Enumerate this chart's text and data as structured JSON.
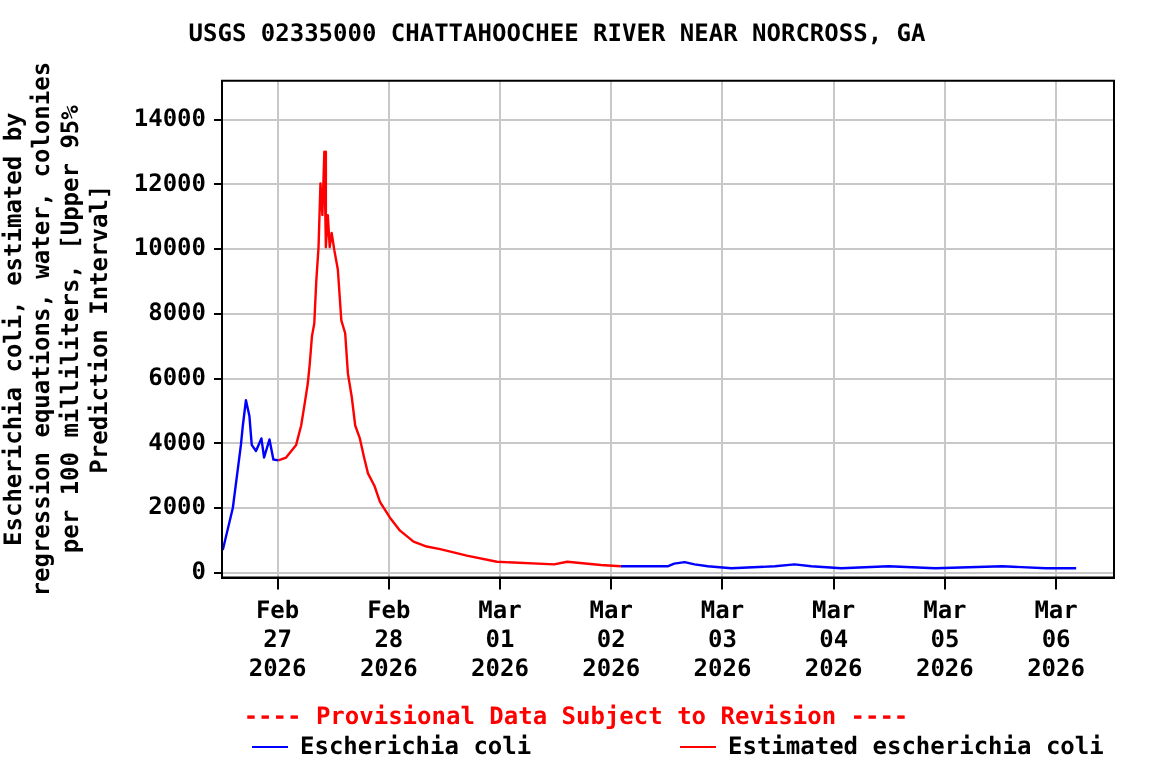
{
  "chart_data": {
    "type": "line",
    "title": "USGS 02335000 CHATTAHOOCHEE RIVER NEAR NORCROSS, GA",
    "ylabel": "Escherichia coli, estimated by regression equations, water, colonies per 100 milliliters, [Upper 95% Prediction Interval]",
    "annotations": [
      "---- Provisional Data Subject to Revision ----"
    ],
    "xlim": [
      "2026-02-26T12:00",
      "2026-03-06T12:30"
    ],
    "xticks": [
      {
        "value": "2026-02-27",
        "label": "Feb 27 2026"
      },
      {
        "value": "2026-02-28",
        "label": "Feb 28 2026"
      },
      {
        "value": "2026-03-01",
        "label": "Mar 01 2026"
      },
      {
        "value": "2026-03-02",
        "label": "Mar 02 2026"
      },
      {
        "value": "2026-03-03",
        "label": "Mar 03 2026"
      },
      {
        "value": "2026-03-04",
        "label": "Mar 04 2026"
      },
      {
        "value": "2026-03-05",
        "label": "Mar 05 2026"
      },
      {
        "value": "2026-03-06",
        "label": "Mar 06 2026"
      }
    ],
    "ylim": [
      -150,
      15200
    ],
    "yticks": [
      0,
      2000,
      4000,
      6000,
      8000,
      10000,
      12000,
      14000
    ],
    "grid": true,
    "legend": "bottom",
    "marker": "none",
    "line_style": "solid",
    "series": [
      {
        "name": "Escherichia coli",
        "color": "#0000ff",
        "x": [
          "2026-02-26T12:10",
          "2026-02-26T14:20",
          "2026-02-26T16:05",
          "2026-02-26T16:30",
          "2026-02-26T17:10",
          "2026-02-26T17:55",
          "2026-02-26T18:25",
          "2026-02-26T19:20",
          "2026-02-26T20:30",
          "2026-02-26T21:05",
          "2026-02-26T22:15",
          "2026-02-26T23:05",
          "2026-02-27T00:10",
          "2026-03-01T12:00",
          "2026-03-02T02:05",
          "2026-03-02T12:10",
          "2026-03-02T13:35",
          "2026-03-02T15:50",
          "2026-03-02T18:00",
          "2026-03-02T20:50",
          "2026-03-03T01:55",
          "2026-03-03T11:20",
          "2026-03-03T15:35",
          "2026-03-03T19:10",
          "2026-03-04T01:40",
          "2026-03-04T11:50",
          "2026-03-04T21:55",
          "2026-03-05T12:25",
          "2026-03-05T21:50",
          "2026-03-06T04:20"
        ],
        "values": [
          700,
          2000,
          3950,
          4550,
          5330,
          4840,
          3950,
          3760,
          4150,
          3560,
          4120,
          3500,
          3470,
          null,
          200,
          200,
          280,
          330,
          260,
          200,
          140,
          200,
          260,
          200,
          140,
          200,
          140,
          200,
          140,
          140
        ]
      },
      {
        "name": "Estimated escherichia coli",
        "color": "#ff0000",
        "x": [
          "2026-02-27T00:10",
          "2026-02-27T01:50",
          "2026-02-27T04:00",
          "2026-02-27T05:05",
          "2026-02-27T05:45",
          "2026-02-27T06:30",
          "2026-02-27T06:55",
          "2026-02-27T07:25",
          "2026-02-27T07:55",
          "2026-02-27T08:20",
          "2026-02-27T08:50",
          "2026-02-27T09:15",
          "2026-02-27T09:40",
          "2026-02-27T10:05",
          "2026-02-27T10:25",
          "2026-02-27T10:50",
          "2026-02-27T11:15",
          "2026-02-27T11:40",
          "2026-02-27T12:15",
          "2026-02-27T13:00",
          "2026-02-27T13:45",
          "2026-02-27T14:35",
          "2026-02-27T15:10",
          "2026-02-27T16:00",
          "2026-02-27T16:45",
          "2026-02-27T17:45",
          "2026-02-27T18:40",
          "2026-02-27T19:30",
          "2026-02-27T20:55",
          "2026-02-27T22:05",
          "2026-02-28T00:15",
          "2026-02-28T02:25",
          "2026-02-28T05:20",
          "2026-02-28T08:10",
          "2026-02-28T11:05",
          "2026-02-28T16:50",
          "2026-02-28T23:20",
          "2026-03-01T11:40",
          "2026-03-01T14:30",
          "2026-03-01T21:45",
          "2026-03-02T02:05"
        ],
        "values": [
          3470,
          3560,
          3950,
          4550,
          5140,
          5830,
          6420,
          7310,
          7700,
          8980,
          10060,
          12030,
          11050,
          13010,
          10060,
          11050,
          10060,
          10500,
          9960,
          9370,
          7800,
          7400,
          6160,
          5430,
          4550,
          4150,
          3560,
          3070,
          2680,
          2190,
          1700,
          1300,
          960,
          810,
          730,
          530,
          340,
          260,
          340,
          240,
          200
        ]
      }
    ]
  }
}
